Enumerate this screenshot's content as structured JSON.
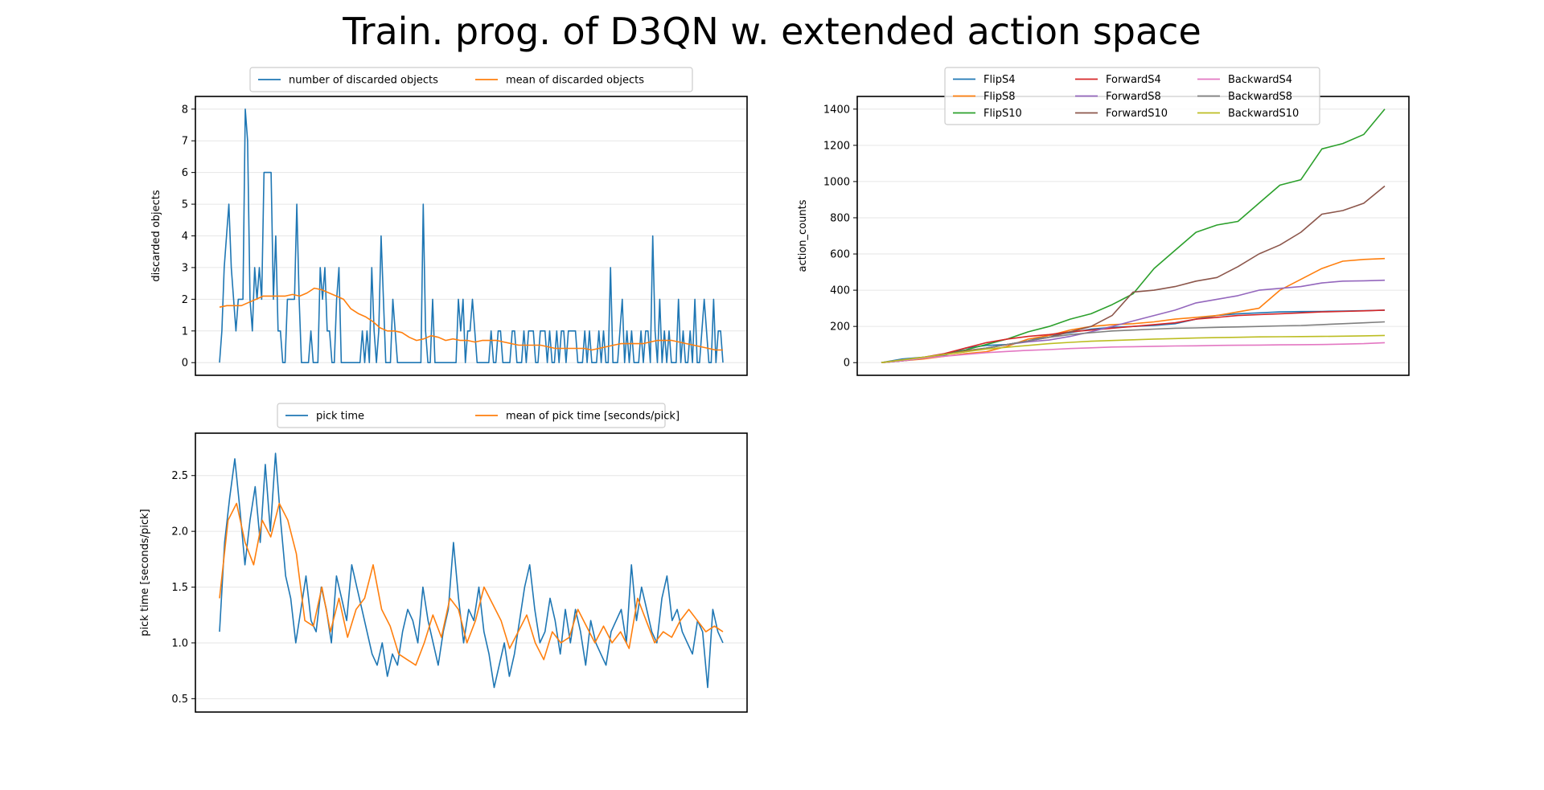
{
  "figure_title": "Train. prog. of D3QN w. extended action space",
  "colors": {
    "blue": "#1f77b4",
    "orange": "#ff7f0e",
    "green": "#2ca02c",
    "red": "#d62728",
    "purple": "#9467bd",
    "brown": "#8c564b",
    "pink": "#e377c2",
    "gray": "#7f7f7f",
    "olive": "#bcbd22",
    "grid": "#e6e6e6"
  },
  "chart_data": [
    {
      "id": "discarded",
      "type": "line",
      "title": "",
      "xlabel": "",
      "ylabel": "discarded objects",
      "ylim": [
        -0.4,
        8.4
      ],
      "yticks": [
        0,
        1,
        2,
        3,
        4,
        5,
        6,
        7,
        8
      ],
      "xticks_shown": false,
      "grid": "horizontal",
      "legend_placement": "top-center",
      "series": [
        {
          "name": "number of discarded objects",
          "color": "#1f77b4",
          "values": [
            0,
            1,
            3,
            4,
            5,
            3,
            2,
            1,
            2,
            2,
            2,
            8,
            7,
            2,
            1,
            3,
            2,
            3,
            2,
            6,
            6,
            6,
            6,
            2,
            4,
            1,
            1,
            0,
            0,
            2,
            2,
            2,
            2,
            5,
            2,
            0,
            0,
            0,
            0,
            1,
            0,
            0,
            0,
            3,
            2,
            3,
            1,
            1,
            0,
            0,
            2,
            3,
            0,
            0,
            0,
            0,
            0,
            0,
            0,
            0,
            0,
            1,
            0,
            1,
            0,
            3,
            1,
            0,
            1,
            4,
            2,
            0,
            0,
            0,
            2,
            1,
            0,
            0,
            0,
            0,
            0,
            0,
            0,
            0,
            0,
            0,
            0,
            5,
            1,
            0,
            0,
            2,
            0,
            0,
            0,
            0,
            0,
            0,
            0,
            0,
            0,
            0,
            2,
            1,
            2,
            0,
            1,
            1,
            2,
            1,
            0,
            0,
            0,
            0,
            0,
            0,
            1,
            0,
            0,
            1,
            1,
            0,
            0,
            0,
            0,
            1,
            1,
            0,
            0,
            0,
            1,
            0,
            1,
            1,
            1,
            0,
            0,
            1,
            1,
            1,
            0,
            1,
            0,
            0,
            1,
            0,
            1,
            1,
            0,
            1,
            1,
            1,
            1,
            0,
            0,
            0,
            1,
            0,
            1,
            0,
            0,
            0,
            1,
            0,
            1,
            0,
            0,
            3,
            0,
            0,
            0,
            1,
            2,
            0,
            1,
            0,
            1,
            0,
            0,
            0,
            1,
            0,
            1,
            1,
            0,
            4,
            1,
            0,
            2,
            0,
            1,
            0,
            1,
            0,
            0,
            0,
            2,
            0,
            1,
            0,
            0,
            1,
            0,
            2,
            0,
            0,
            1,
            2,
            1,
            0,
            0,
            2,
            0,
            1,
            1,
            0
          ]
        },
        {
          "name": "mean of discarded objects",
          "color": "#ff7f0e",
          "values": [
            1.75,
            1.8,
            1.8,
            1.8,
            1.9,
            2.0,
            2.1,
            2.1,
            2.1,
            2.1,
            2.15,
            2.1,
            2.2,
            2.35,
            2.3,
            2.2,
            2.1,
            2.0,
            1.7,
            1.55,
            1.45,
            1.3,
            1.1,
            1.0,
            1.0,
            0.95,
            0.8,
            0.7,
            0.75,
            0.85,
            0.8,
            0.7,
            0.75,
            0.7,
            0.7,
            0.65,
            0.7,
            0.7,
            0.7,
            0.65,
            0.6,
            0.55,
            0.55,
            0.55,
            0.55,
            0.5,
            0.45,
            0.45,
            0.45,
            0.45,
            0.45,
            0.4,
            0.45,
            0.5,
            0.55,
            0.6,
            0.6,
            0.6,
            0.6,
            0.65,
            0.7,
            0.7,
            0.7,
            0.65,
            0.6,
            0.55,
            0.5,
            0.45,
            0.4,
            0.4
          ]
        }
      ]
    },
    {
      "id": "actions",
      "type": "line",
      "title": "",
      "xlabel": "",
      "ylabel": "action_counts",
      "ylim": [
        -70,
        1470
      ],
      "yticks": [
        0,
        200,
        400,
        600,
        800,
        1000,
        1200,
        1400
      ],
      "xticks_shown": false,
      "grid": "horizontal",
      "legend_placement": "upper-left-center",
      "series": [
        {
          "name": "FlipS4",
          "color": "#1f77b4",
          "values": [
            0,
            20,
            30,
            40,
            80,
            95,
            100,
            120,
            150,
            165,
            185,
            195,
            200,
            205,
            215,
            240,
            260,
            270,
            275,
            280,
            282,
            283,
            285,
            287,
            290
          ]
        },
        {
          "name": "FlipS8",
          "color": "#ff7f0e",
          "values": [
            0,
            10,
            20,
            35,
            50,
            60,
            90,
            130,
            150,
            180,
            200,
            210,
            215,
            225,
            240,
            250,
            260,
            280,
            300,
            400,
            460,
            520,
            560,
            570,
            575
          ]
        },
        {
          "name": "FlipS10",
          "color": "#2ca02c",
          "values": [
            0,
            10,
            25,
            45,
            70,
            100,
            130,
            170,
            200,
            240,
            270,
            320,
            380,
            520,
            620,
            720,
            760,
            780,
            880,
            980,
            1010,
            1180,
            1210,
            1260,
            1400
          ]
        },
        {
          "name": "ForwardS4",
          "color": "#d62728",
          "values": [
            0,
            15,
            30,
            50,
            80,
            110,
            130,
            145,
            155,
            170,
            180,
            190,
            200,
            210,
            220,
            240,
            250,
            260,
            265,
            270,
            275,
            280,
            283,
            286,
            290
          ]
        },
        {
          "name": "ForwardS8",
          "color": "#9467bd",
          "values": [
            0,
            10,
            25,
            45,
            65,
            80,
            100,
            115,
            125,
            145,
            170,
            200,
            230,
            260,
            290,
            330,
            350,
            370,
            400,
            410,
            420,
            440,
            450,
            452,
            455
          ]
        },
        {
          "name": "ForwardS10",
          "color": "#8c564b",
          "values": [
            0,
            10,
            25,
            45,
            65,
            80,
            100,
            120,
            140,
            170,
            200,
            260,
            390,
            400,
            420,
            450,
            470,
            530,
            600,
            650,
            720,
            820,
            840,
            880,
            975
          ]
        },
        {
          "name": "BackwardS4",
          "color": "#e377c2",
          "values": [
            0,
            10,
            25,
            35,
            45,
            55,
            62,
            68,
            72,
            78,
            82,
            86,
            88,
            90,
            92,
            93,
            95,
            96,
            97,
            98,
            99,
            100,
            102,
            105,
            110
          ]
        },
        {
          "name": "BackwardS8",
          "color": "#7f7f7f",
          "values": [
            0,
            15,
            30,
            45,
            60,
            80,
            100,
            120,
            140,
            155,
            165,
            175,
            180,
            185,
            190,
            192,
            195,
            197,
            200,
            203,
            205,
            210,
            215,
            220,
            225
          ]
        },
        {
          "name": "BackwardS10",
          "color": "#bcbd22",
          "values": [
            0,
            15,
            30,
            45,
            60,
            75,
            85,
            95,
            105,
            112,
            118,
            122,
            126,
            130,
            133,
            136,
            138,
            140,
            142,
            143,
            144,
            145,
            146,
            148,
            150
          ]
        }
      ]
    },
    {
      "id": "picktime",
      "type": "line",
      "title": "",
      "xlabel": "",
      "ylabel": "pick time [seconds/pick]",
      "ylim": [
        0.38,
        2.88
      ],
      "yticks": [
        0.5,
        1.0,
        1.5,
        2.0,
        2.5
      ],
      "ytick_labels": [
        "0.5",
        "1.0",
        "1.5",
        "2.0",
        "2.5"
      ],
      "xticks_shown": false,
      "grid": "horizontal",
      "legend_placement": "top-center",
      "series": [
        {
          "name": "pick time",
          "color": "#1f77b4",
          "values": [
            1.1,
            1.9,
            2.3,
            2.65,
            2.2,
            1.7,
            2.1,
            2.4,
            1.9,
            2.6,
            2.0,
            2.7,
            2.1,
            1.6,
            1.4,
            1.0,
            1.3,
            1.6,
            1.2,
            1.1,
            1.5,
            1.3,
            1.0,
            1.6,
            1.4,
            1.2,
            1.7,
            1.5,
            1.3,
            1.1,
            0.9,
            0.8,
            1.0,
            0.7,
            0.9,
            0.8,
            1.1,
            1.3,
            1.2,
            1.0,
            1.5,
            1.2,
            1.0,
            0.8,
            1.1,
            1.3,
            1.9,
            1.4,
            1.0,
            1.3,
            1.2,
            1.5,
            1.1,
            0.9,
            0.6,
            0.8,
            1.0,
            0.7,
            0.9,
            1.2,
            1.5,
            1.7,
            1.3,
            1.0,
            1.1,
            1.4,
            1.2,
            0.9,
            1.3,
            1.0,
            1.3,
            1.1,
            0.8,
            1.2,
            1.0,
            0.9,
            0.8,
            1.1,
            1.2,
            1.3,
            1.0,
            1.7,
            1.2,
            1.5,
            1.3,
            1.1,
            1.0,
            1.4,
            1.6,
            1.2,
            1.3,
            1.1,
            1.0,
            0.9,
            1.2,
            1.1,
            0.6,
            1.3,
            1.1,
            1.0
          ]
        },
        {
          "name": "mean of pick time [seconds/pick]",
          "color": "#ff7f0e",
          "values": [
            1.4,
            2.1,
            2.25,
            1.9,
            1.7,
            2.1,
            1.95,
            2.25,
            2.1,
            1.8,
            1.2,
            1.15,
            1.5,
            1.1,
            1.4,
            1.05,
            1.3,
            1.4,
            1.7,
            1.3,
            1.15,
            0.9,
            0.85,
            0.8,
            1.0,
            1.25,
            1.05,
            1.4,
            1.3,
            1.0,
            1.2,
            1.5,
            1.35,
            1.2,
            0.95,
            1.1,
            1.25,
            1.0,
            0.85,
            1.1,
            1.0,
            1.05,
            1.3,
            1.15,
            1.0,
            1.15,
            1.0,
            1.1,
            0.95,
            1.4,
            1.2,
            1.0,
            1.1,
            1.05,
            1.2,
            1.3,
            1.2,
            1.1,
            1.15,
            1.1
          ]
        }
      ]
    }
  ]
}
